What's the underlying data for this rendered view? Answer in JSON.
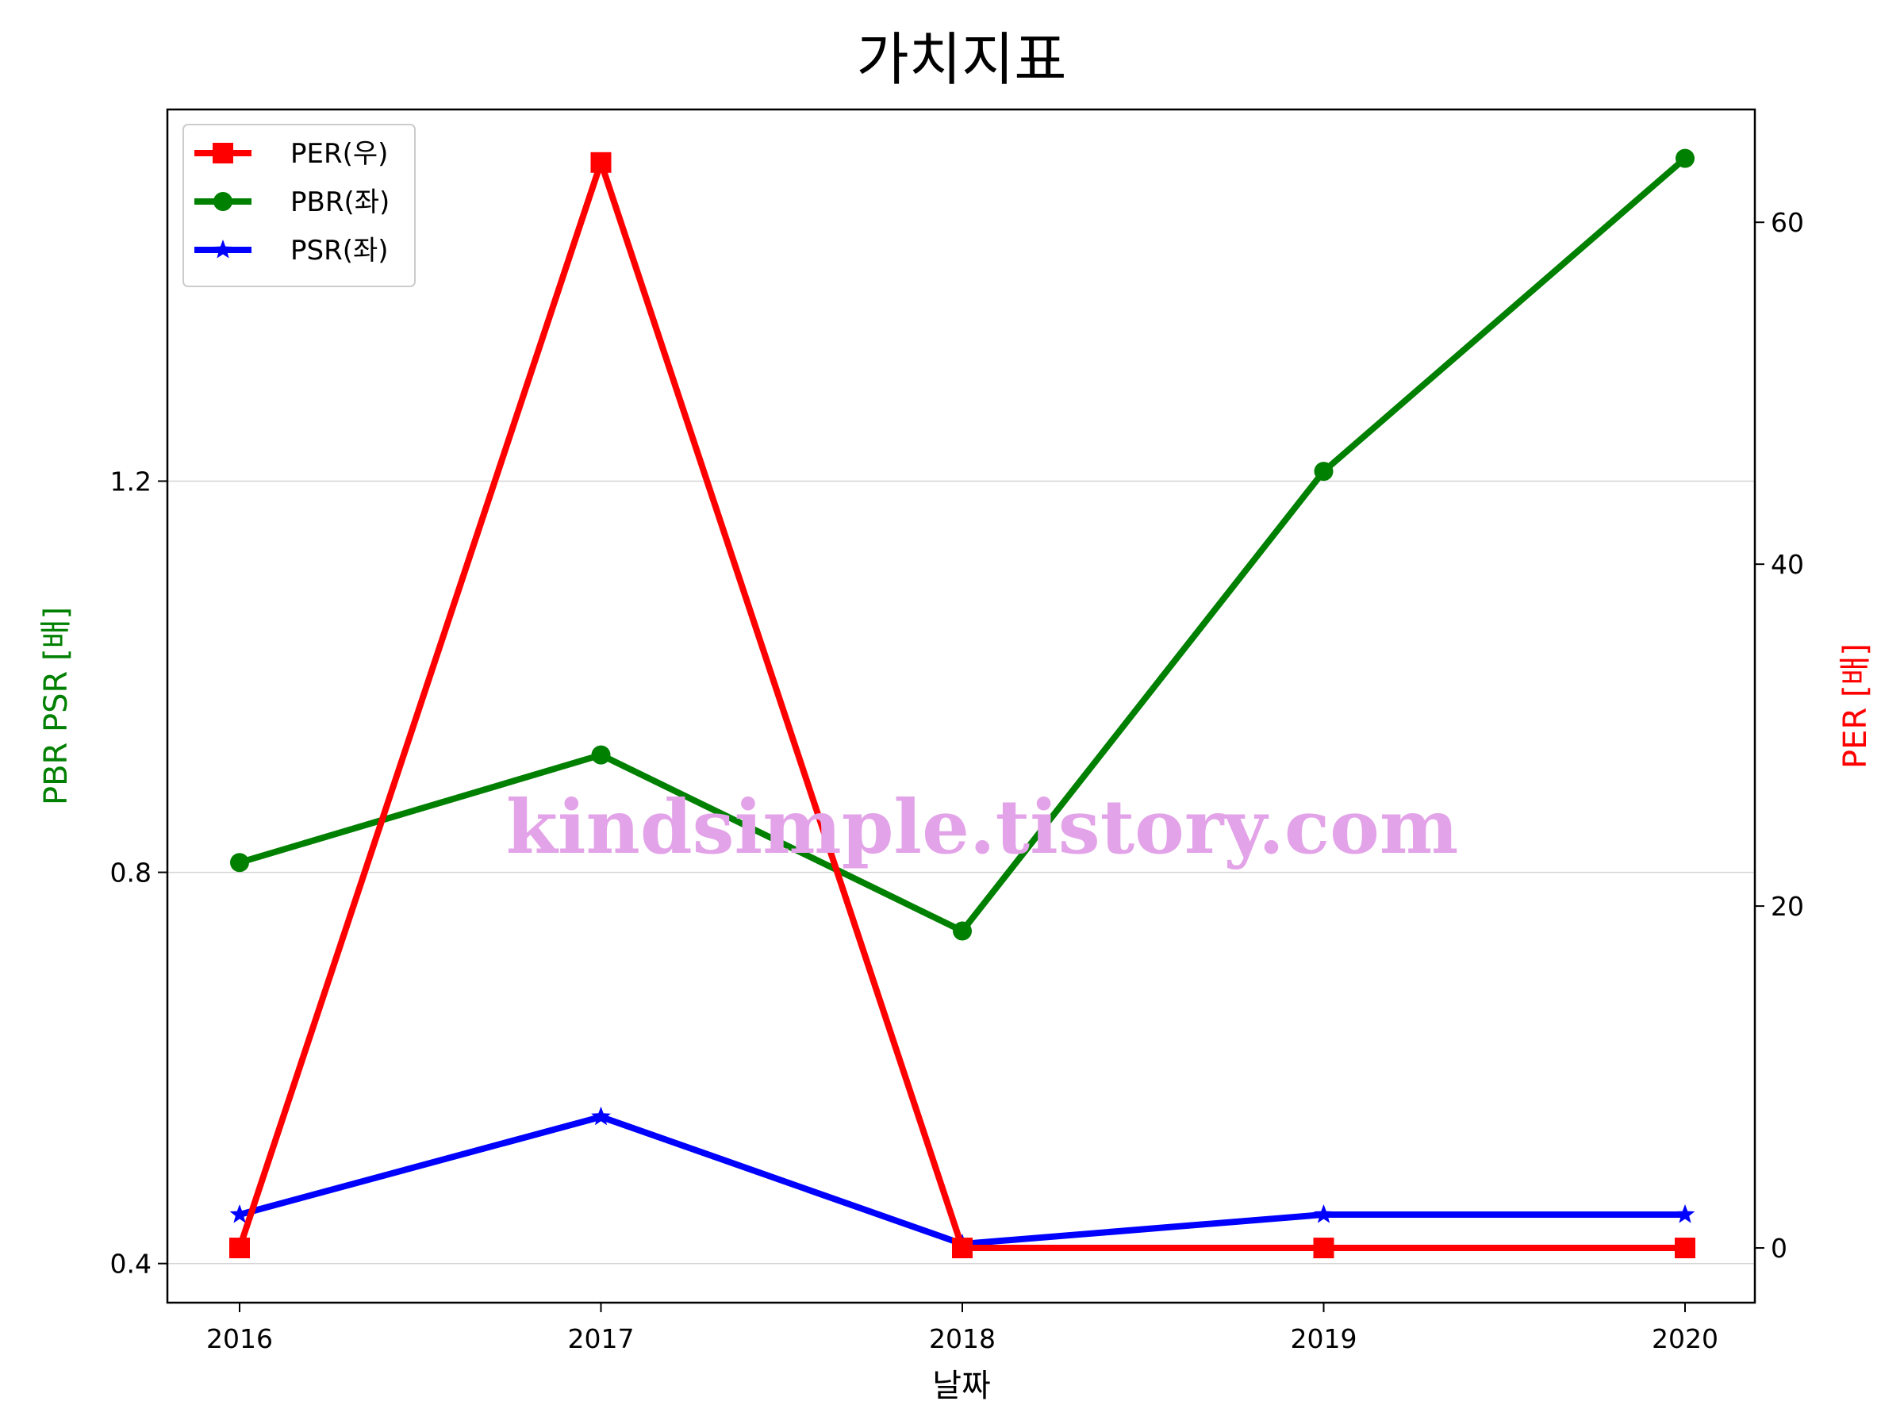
{
  "chart_data": {
    "type": "line",
    "title": "가치지표",
    "xlabel": "날짜",
    "ylabel_left": "PBR PSR [배]",
    "ylabel_right": "PER [배]",
    "categories": [
      "2016",
      "2017",
      "2018",
      "2019",
      "2020"
    ],
    "left_axis": {
      "ylim": [
        0.36,
        1.58
      ],
      "ticks": [
        0.4,
        0.8,
        1.2
      ],
      "tick_labels": [
        "0.4",
        "0.8",
        "1.2"
      ],
      "label_color": "#008000"
    },
    "right_axis": {
      "ylim": [
        -3.2,
        66.6
      ],
      "ticks": [
        0,
        20,
        40,
        60
      ],
      "tick_labels": [
        "0",
        "20",
        "40",
        "60"
      ],
      "label_color": "#ff0000"
    },
    "grid": "horizontal (left axis)",
    "legend_position": "top-left",
    "series": [
      {
        "name": "PER(우)",
        "axis": "right",
        "color": "#ff0000",
        "marker": "square",
        "values": [
          0,
          63.5,
          0,
          0,
          0
        ]
      },
      {
        "name": "PBR(좌)",
        "axis": "left",
        "color": "#008000",
        "marker": "circle",
        "values": [
          0.81,
          0.92,
          0.74,
          1.21,
          1.53
        ]
      },
      {
        "name": "PSR(좌)",
        "axis": "left",
        "color": "#0000ff",
        "marker": "star",
        "values": [
          0.45,
          0.55,
          0.42,
          0.45,
          0.45
        ]
      }
    ],
    "annotations": [
      "kindsimple.tistory.com"
    ]
  }
}
